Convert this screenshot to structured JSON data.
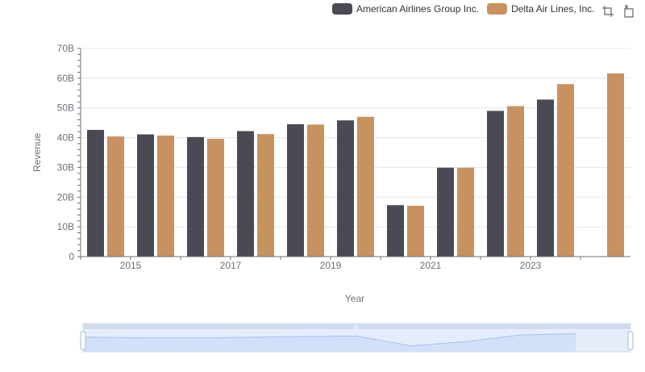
{
  "legend": {
    "items": [
      {
        "label": "American Airlines Group Inc.",
        "color": "#4a4a55"
      },
      {
        "label": "Delta Air Lines, Inc.",
        "color": "#c89260"
      }
    ]
  },
  "toolbox": {
    "zoom_icon": "zoom-select-icon",
    "restore_icon": "restore-icon"
  },
  "chart_data": {
    "type": "bar",
    "title": "",
    "xlabel": "Year",
    "ylabel": "Revenue",
    "ylim": [
      0,
      70000000000
    ],
    "y_ticks": [
      "0",
      "10B",
      "20B",
      "30B",
      "40B",
      "50B",
      "60B",
      "70B"
    ],
    "x_ticks": [
      "2015",
      "2017",
      "2019",
      "2021",
      "2023"
    ],
    "categories": [
      "2014",
      "2015",
      "2016",
      "2017",
      "2018",
      "2019",
      "2020",
      "2021",
      "2022",
      "2023",
      "2024"
    ],
    "series": [
      {
        "name": "American Airlines Group Inc.",
        "color": "#4a4a55",
        "values": [
          42600000000,
          41100000000,
          40200000000,
          42200000000,
          44500000000,
          45800000000,
          17300000000,
          29900000000,
          49000000000,
          52800000000,
          null
        ]
      },
      {
        "name": "Delta Air Lines, Inc.",
        "color": "#c89260",
        "values": [
          40400000000,
          40700000000,
          39600000000,
          41200000000,
          44400000000,
          47000000000,
          17100000000,
          29900000000,
          50600000000,
          58000000000,
          61600000000
        ]
      }
    ],
    "grid": true,
    "dataZoom": {
      "start": 0,
      "end": 100
    }
  }
}
